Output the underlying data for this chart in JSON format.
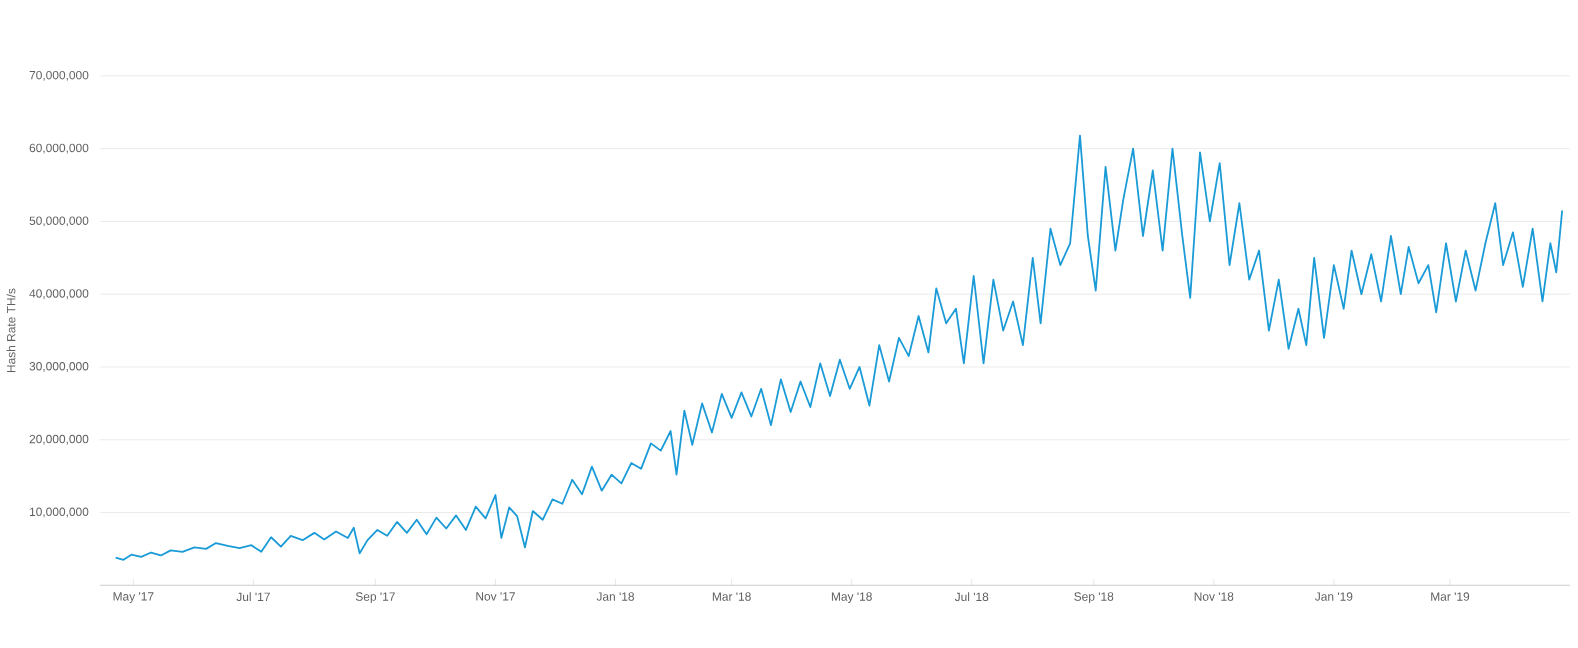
{
  "chart_data": {
    "type": "line",
    "ylabel": "Hash Rate TH/s",
    "grid": "y",
    "marker": "none",
    "line_style": "solid",
    "xlim": [
      "2017-04-14",
      "2019-05-01"
    ],
    "xticks": [
      {
        "value": "2017-05-01",
        "label": "May '17"
      },
      {
        "value": "2017-07-01",
        "label": "Jul '17"
      },
      {
        "value": "2017-09-01",
        "label": "Sep '17"
      },
      {
        "value": "2017-11-01",
        "label": "Nov '17"
      },
      {
        "value": "2018-01-01",
        "label": "Jan '18"
      },
      {
        "value": "2018-03-01",
        "label": "Mar '18"
      },
      {
        "value": "2018-05-01",
        "label": "May '18"
      },
      {
        "value": "2018-07-01",
        "label": "Jul '18"
      },
      {
        "value": "2018-09-01",
        "label": "Sep '18"
      },
      {
        "value": "2018-11-01",
        "label": "Nov '18"
      },
      {
        "value": "2019-01-01",
        "label": "Jan '19"
      },
      {
        "value": "2019-03-01",
        "label": "Mar '19"
      }
    ],
    "ylim": [
      0,
      70000000
    ],
    "yticks": [
      {
        "value": 10000000,
        "label": "10,000,000"
      },
      {
        "value": 20000000,
        "label": "20,000,000"
      },
      {
        "value": 30000000,
        "label": "30,000,000"
      },
      {
        "value": 40000000,
        "label": "40,000,000"
      },
      {
        "value": 50000000,
        "label": "50,000,000"
      },
      {
        "value": 60000000,
        "label": "60,000,000"
      },
      {
        "value": 70000000,
        "label": "70,000,000"
      }
    ],
    "series": [
      {
        "color": "#1a9bd7",
        "x": [
          "2017-04-22",
          "2017-04-26",
          "2017-04-30",
          "2017-05-05",
          "2017-05-10",
          "2017-05-15",
          "2017-05-20",
          "2017-05-26",
          "2017-06-01",
          "2017-06-07",
          "2017-06-12",
          "2017-06-18",
          "2017-06-24",
          "2017-06-30",
          "2017-07-05",
          "2017-07-10",
          "2017-07-15",
          "2017-07-20",
          "2017-07-26",
          "2017-08-01",
          "2017-08-06",
          "2017-08-12",
          "2017-08-18",
          "2017-08-21",
          "2017-08-24",
          "2017-08-28",
          "2017-09-02",
          "2017-09-07",
          "2017-09-12",
          "2017-09-17",
          "2017-09-22",
          "2017-09-27",
          "2017-10-02",
          "2017-10-07",
          "2017-10-12",
          "2017-10-17",
          "2017-10-22",
          "2017-10-27",
          "2017-11-01",
          "2017-11-04",
          "2017-11-08",
          "2017-11-12",
          "2017-11-16",
          "2017-11-20",
          "2017-11-25",
          "2017-11-30",
          "2017-12-05",
          "2017-12-10",
          "2017-12-15",
          "2017-12-20",
          "2017-12-25",
          "2017-12-30",
          "2018-01-04",
          "2018-01-09",
          "2018-01-14",
          "2018-01-19",
          "2018-01-24",
          "2018-01-29",
          "2018-02-01",
          "2018-02-05",
          "2018-02-09",
          "2018-02-14",
          "2018-02-19",
          "2018-02-24",
          "2018-03-01",
          "2018-03-06",
          "2018-03-11",
          "2018-03-16",
          "2018-03-21",
          "2018-03-26",
          "2018-03-31",
          "2018-04-05",
          "2018-04-10",
          "2018-04-15",
          "2018-04-20",
          "2018-04-25",
          "2018-04-30",
          "2018-05-05",
          "2018-05-10",
          "2018-05-15",
          "2018-05-20",
          "2018-05-25",
          "2018-05-30",
          "2018-06-04",
          "2018-06-09",
          "2018-06-13",
          "2018-06-18",
          "2018-06-23",
          "2018-06-27",
          "2018-07-02",
          "2018-07-07",
          "2018-07-12",
          "2018-07-17",
          "2018-07-22",
          "2018-07-27",
          "2018-08-01",
          "2018-08-05",
          "2018-08-10",
          "2018-08-15",
          "2018-08-20",
          "2018-08-25",
          "2018-08-29",
          "2018-09-02",
          "2018-09-07",
          "2018-09-12",
          "2018-09-16",
          "2018-09-21",
          "2018-09-26",
          "2018-10-01",
          "2018-10-06",
          "2018-10-11",
          "2018-10-16",
          "2018-10-20",
          "2018-10-25",
          "2018-10-30",
          "2018-11-04",
          "2018-11-09",
          "2018-11-14",
          "2018-11-19",
          "2018-11-24",
          "2018-11-29",
          "2018-12-04",
          "2018-12-09",
          "2018-12-14",
          "2018-12-18",
          "2018-12-22",
          "2018-12-27",
          "2019-01-01",
          "2019-01-06",
          "2019-01-10",
          "2019-01-15",
          "2019-01-20",
          "2019-01-25",
          "2019-01-30",
          "2019-02-04",
          "2019-02-08",
          "2019-02-13",
          "2019-02-18",
          "2019-02-22",
          "2019-02-27",
          "2019-03-04",
          "2019-03-09",
          "2019-03-14",
          "2019-03-19",
          "2019-03-24",
          "2019-03-28",
          "2019-04-02",
          "2019-04-07",
          "2019-04-12",
          "2019-04-17",
          "2019-04-21",
          "2019-04-24",
          "2019-04-27"
        ],
        "values": [
          3800000,
          3500000,
          4200000,
          3900000,
          4500000,
          4100000,
          4800000,
          4600000,
          5200000,
          5000000,
          5800000,
          5400000,
          5100000,
          5500000,
          4600000,
          6600000,
          5300000,
          6800000,
          6200000,
          7200000,
          6300000,
          7400000,
          6500000,
          7900000,
          4400000,
          6200000,
          7600000,
          6800000,
          8700000,
          7200000,
          9000000,
          7000000,
          9300000,
          7800000,
          9600000,
          7600000,
          10800000,
          9200000,
          12400000,
          6500000,
          10700000,
          9500000,
          5200000,
          10200000,
          9000000,
          11800000,
          11200000,
          14500000,
          12500000,
          16300000,
          13000000,
          15200000,
          14000000,
          16800000,
          16000000,
          19500000,
          18500000,
          21200000,
          15200000,
          24000000,
          19300000,
          25000000,
          21000000,
          26300000,
          23000000,
          26500000,
          23200000,
          27000000,
          22000000,
          28300000,
          23800000,
          28000000,
          24500000,
          30500000,
          26000000,
          31000000,
          27000000,
          30000000,
          24700000,
          33000000,
          28000000,
          34000000,
          31500000,
          37000000,
          32000000,
          40800000,
          36000000,
          38000000,
          30500000,
          42500000,
          30500000,
          42000000,
          35000000,
          39000000,
          33000000,
          45000000,
          36000000,
          49000000,
          44000000,
          47000000,
          61800000,
          48000000,
          40500000,
          57500000,
          46000000,
          53000000,
          60000000,
          48000000,
          57000000,
          46000000,
          60000000,
          48000000,
          39500000,
          59500000,
          50000000,
          58000000,
          44000000,
          52500000,
          42000000,
          46000000,
          35000000,
          42000000,
          32500000,
          38000000,
          33000000,
          45000000,
          34000000,
          44000000,
          38000000,
          46000000,
          40000000,
          45500000,
          39000000,
          48000000,
          40000000,
          46500000,
          41500000,
          44000000,
          37500000,
          47000000,
          39000000,
          46000000,
          40500000,
          47000000,
          52500000,
          44000000,
          48500000,
          41000000,
          49000000,
          39000000,
          47000000,
          43000000,
          51500000
        ]
      }
    ]
  }
}
